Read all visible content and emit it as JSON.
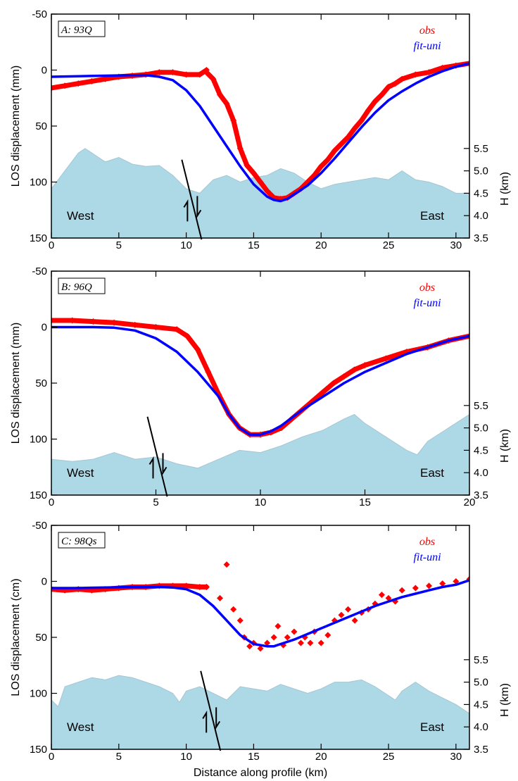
{
  "colors": {
    "obs": "#ff0000",
    "fit": "#0000ff",
    "topography": "#add8e6",
    "axis": "#000000"
  },
  "xlabel": "Distance along profile (km)",
  "chart_data": [
    {
      "type": "line",
      "panel_label": "A: 93Q",
      "ylabel": "LOS displacement (mm)",
      "y2label": "H (km)",
      "xlim": [
        0,
        31
      ],
      "xticks": [
        0,
        5,
        10,
        15,
        20,
        25,
        30
      ],
      "ylim": [
        150,
        -50
      ],
      "yticks": [
        -50,
        0,
        50,
        100,
        150
      ],
      "y2lim": [
        3.5,
        5.5
      ],
      "y2ticks": [
        "5.5",
        "5.0",
        "4.5",
        "4.0",
        "3.5"
      ],
      "legend": [
        "obs",
        "fit-uni"
      ],
      "legend_position": "top-right",
      "direction_labels": [
        "West",
        "East"
      ],
      "fault_x": 10.3,
      "obs_segments": [
        [
          [
            0,
            16
          ],
          [
            1,
            14
          ],
          [
            2,
            12
          ],
          [
            3,
            10
          ],
          [
            4,
            8
          ],
          [
            5,
            6
          ],
          [
            6,
            5
          ],
          [
            7,
            4
          ],
          [
            8,
            2
          ],
          [
            9,
            2
          ],
          [
            10,
            4
          ],
          [
            11,
            4
          ],
          [
            11.5,
            0
          ]
        ],
        [
          [
            11.5,
            2
          ],
          [
            12,
            8
          ],
          [
            12.5,
            22
          ],
          [
            13,
            30
          ],
          [
            13.5,
            45
          ],
          [
            14,
            70
          ],
          [
            14.5,
            85
          ],
          [
            15,
            92
          ],
          [
            15.5,
            100
          ],
          [
            16,
            108
          ],
          [
            16.5,
            114
          ],
          [
            17,
            115
          ],
          [
            17.5,
            114
          ],
          [
            18,
            110
          ],
          [
            18.5,
            106
          ],
          [
            19,
            100
          ],
          [
            19.5,
            94
          ],
          [
            20,
            86
          ],
          [
            20.5,
            80
          ],
          [
            21,
            72
          ],
          [
            21.5,
            66
          ],
          [
            22,
            60
          ],
          [
            22.5,
            52
          ],
          [
            23,
            45
          ],
          [
            23.5,
            36
          ],
          [
            24,
            28
          ],
          [
            24.5,
            22
          ],
          [
            25,
            15
          ],
          [
            25.5,
            12
          ],
          [
            26,
            8
          ],
          [
            27,
            4
          ],
          [
            28,
            2
          ],
          [
            29,
            -2
          ],
          [
            30,
            -4
          ],
          [
            31,
            -6
          ]
        ]
      ],
      "fit": [
        [
          0,
          6
        ],
        [
          2,
          5.5
        ],
        [
          4,
          5
        ],
        [
          6,
          4.5
        ],
        [
          7,
          4.5
        ],
        [
          8,
          6
        ],
        [
          9,
          9
        ],
        [
          10,
          18
        ],
        [
          11,
          32
        ],
        [
          12,
          50
        ],
        [
          13,
          68
        ],
        [
          14,
          86
        ],
        [
          15,
          102
        ],
        [
          16,
          113
        ],
        [
          16.5,
          116
        ],
        [
          17,
          117
        ],
        [
          17.5,
          115
        ],
        [
          18,
          111
        ],
        [
          19,
          103
        ],
        [
          20,
          92
        ],
        [
          21,
          79
        ],
        [
          22,
          65
        ],
        [
          23,
          51
        ],
        [
          24,
          38
        ],
        [
          25,
          27
        ],
        [
          26,
          19
        ],
        [
          27,
          12
        ],
        [
          28,
          6
        ],
        [
          29,
          1
        ],
        [
          30,
          -3
        ],
        [
          31,
          -6
        ]
      ],
      "topography_km": [
        [
          0,
          4.6
        ],
        [
          1,
          5.0
        ],
        [
          2,
          5.4
        ],
        [
          2.5,
          5.5
        ],
        [
          3,
          5.4
        ],
        [
          4,
          5.2
        ],
        [
          5,
          5.3
        ],
        [
          6,
          5.15
        ],
        [
          7,
          5.1
        ],
        [
          8,
          5.12
        ],
        [
          9,
          4.9
        ],
        [
          10,
          4.6
        ],
        [
          11,
          4.5
        ],
        [
          12,
          4.8
        ],
        [
          13,
          4.9
        ],
        [
          14,
          4.75
        ],
        [
          15,
          4.85
        ],
        [
          16,
          4.9
        ],
        [
          17,
          5.05
        ],
        [
          18,
          4.95
        ],
        [
          19,
          4.75
        ],
        [
          20,
          4.6
        ],
        [
          21,
          4.7
        ],
        [
          22,
          4.75
        ],
        [
          23,
          4.8
        ],
        [
          24,
          4.85
        ],
        [
          25,
          4.8
        ],
        [
          26,
          5.0
        ],
        [
          27,
          4.8
        ],
        [
          28,
          4.75
        ],
        [
          29,
          4.65
        ],
        [
          30,
          4.5
        ],
        [
          31,
          4.5
        ]
      ]
    },
    {
      "type": "line",
      "panel_label": "B: 96Q",
      "ylabel": "LOS displacement (mm)",
      "y2label": "H (km)",
      "xlim": [
        0,
        20
      ],
      "xticks": [
        0,
        5,
        10,
        15,
        20
      ],
      "ylim": [
        150,
        -50
      ],
      "yticks": [
        -50,
        0,
        50,
        100,
        150
      ],
      "y2lim": [
        3.5,
        5.5
      ],
      "y2ticks": [
        "5.5",
        "5.0",
        "4.5",
        "4.0",
        "3.5"
      ],
      "legend": [
        "obs",
        "fit-uni"
      ],
      "legend_position": "top-right",
      "direction_labels": [
        "West",
        "East"
      ],
      "fault_x": 5.0,
      "obs_segments": [
        [
          [
            0,
            -6
          ],
          [
            1,
            -6
          ],
          [
            2,
            -5
          ],
          [
            3,
            -4
          ],
          [
            4,
            -2
          ],
          [
            5,
            0
          ],
          [
            6,
            2
          ],
          [
            6.5,
            8
          ],
          [
            7,
            20
          ],
          [
            7.5,
            40
          ],
          [
            8,
            60
          ],
          [
            8.5,
            78
          ],
          [
            9,
            90
          ],
          [
            9.5,
            96
          ],
          [
            10,
            96
          ],
          [
            10.5,
            94
          ],
          [
            11,
            90
          ],
          [
            11.5,
            82
          ],
          [
            12,
            74
          ],
          [
            12.5,
            66
          ],
          [
            13,
            58
          ],
          [
            13.5,
            50
          ],
          [
            14,
            44
          ],
          [
            14.5,
            38
          ],
          [
            15,
            34
          ],
          [
            16,
            28
          ],
          [
            17,
            22
          ],
          [
            18,
            18
          ],
          [
            19,
            12
          ],
          [
            20,
            8
          ]
        ]
      ],
      "fit": [
        [
          0,
          0
        ],
        [
          1,
          0
        ],
        [
          2,
          0
        ],
        [
          3,
          0.5
        ],
        [
          4,
          3
        ],
        [
          5,
          10
        ],
        [
          6,
          22
        ],
        [
          7,
          40
        ],
        [
          8,
          62
        ],
        [
          8.5,
          78
        ],
        [
          9,
          90
        ],
        [
          9.5,
          96
        ],
        [
          10,
          96
        ],
        [
          10.5,
          93
        ],
        [
          11,
          88
        ],
        [
          12,
          74
        ],
        [
          13,
          62
        ],
        [
          14,
          50
        ],
        [
          15,
          40
        ],
        [
          16,
          32
        ],
        [
          17,
          24
        ],
        [
          18,
          18
        ],
        [
          19,
          12
        ],
        [
          20,
          8
        ]
      ],
      "topography_km": [
        [
          0,
          4.3
        ],
        [
          1,
          4.25
        ],
        [
          2,
          4.3
        ],
        [
          3,
          4.45
        ],
        [
          4,
          4.3
        ],
        [
          5,
          4.35
        ],
        [
          6,
          4.2
        ],
        [
          7,
          4.1
        ],
        [
          8,
          4.3
        ],
        [
          9,
          4.5
        ],
        [
          10,
          4.45
        ],
        [
          11,
          4.6
        ],
        [
          12,
          4.8
        ],
        [
          13,
          4.95
        ],
        [
          14,
          5.2
        ],
        [
          14.5,
          5.3
        ],
        [
          15,
          5.1
        ],
        [
          16,
          4.8
        ],
        [
          17,
          4.5
        ],
        [
          17.5,
          4.4
        ],
        [
          18,
          4.7
        ],
        [
          19,
          5.0
        ],
        [
          20,
          5.3
        ]
      ]
    },
    {
      "type": "line",
      "panel_label": "C: 98Qs",
      "ylabel": "LOS displacement (cm)",
      "y2label": "H (km)",
      "xlim": [
        0,
        31
      ],
      "xticks": [
        0,
        5,
        10,
        15,
        20,
        25,
        30
      ],
      "ylim": [
        150,
        -50
      ],
      "yticks": [
        -50,
        0,
        50,
        100,
        150
      ],
      "y2lim": [
        3.5,
        5.5
      ],
      "y2ticks": [
        "5.5",
        "5.0",
        "4.5",
        "4.0",
        "3.5"
      ],
      "legend": [
        "obs",
        "fit-uni"
      ],
      "legend_position": "top-right",
      "direction_labels": [
        "West",
        "East"
      ],
      "fault_x": 11.7,
      "obs_segments": [
        [
          [
            0,
            7
          ],
          [
            1,
            8
          ],
          [
            2,
            7
          ],
          [
            3,
            8
          ],
          [
            4,
            7
          ],
          [
            5,
            6
          ],
          [
            6,
            5
          ],
          [
            7,
            5
          ],
          [
            8,
            4
          ],
          [
            9,
            4
          ],
          [
            10,
            4
          ],
          [
            11,
            5
          ],
          [
            11.5,
            5
          ]
        ]
      ],
      "obs_points": [
        [
          11.5,
          5
        ],
        [
          12.5,
          15
        ],
        [
          13,
          -15
        ],
        [
          13.5,
          25
        ],
        [
          14,
          35
        ],
        [
          14.3,
          50
        ],
        [
          14.7,
          58
        ],
        [
          15,
          55
        ],
        [
          15.5,
          60
        ],
        [
          16,
          55
        ],
        [
          16.5,
          50
        ],
        [
          16.8,
          40
        ],
        [
          17.2,
          57
        ],
        [
          17.5,
          50
        ],
        [
          18,
          45
        ],
        [
          18.5,
          55
        ],
        [
          18.8,
          50
        ],
        [
          19.2,
          55
        ],
        [
          19.5,
          45
        ],
        [
          20,
          55
        ],
        [
          20.5,
          48
        ],
        [
          21,
          35
        ],
        [
          21.5,
          30
        ],
        [
          22,
          25
        ],
        [
          22.5,
          35
        ],
        [
          23,
          28
        ],
        [
          23.5,
          25
        ],
        [
          24,
          20
        ],
        [
          24.5,
          12
        ],
        [
          25,
          15
        ],
        [
          25.5,
          18
        ],
        [
          26,
          8
        ],
        [
          27,
          6
        ],
        [
          28,
          4
        ],
        [
          29,
          2
        ],
        [
          30,
          0
        ],
        [
          31,
          -2
        ]
      ],
      "fit": [
        [
          0,
          6
        ],
        [
          2,
          6
        ],
        [
          4,
          5.5
        ],
        [
          6,
          5
        ],
        [
          8,
          5
        ],
        [
          9,
          5.5
        ],
        [
          10,
          7
        ],
        [
          11,
          12
        ],
        [
          12,
          22
        ],
        [
          13,
          35
        ],
        [
          14,
          48
        ],
        [
          15,
          56
        ],
        [
          16,
          58
        ],
        [
          16.5,
          58
        ],
        [
          17,
          56
        ],
        [
          18,
          52
        ],
        [
          19,
          47
        ],
        [
          20,
          42
        ],
        [
          21,
          37
        ],
        [
          22,
          32
        ],
        [
          23,
          27
        ],
        [
          24,
          22
        ],
        [
          25,
          18
        ],
        [
          26,
          14
        ],
        [
          27,
          11
        ],
        [
          28,
          8
        ],
        [
          29,
          5
        ],
        [
          30,
          3
        ],
        [
          31,
          -1
        ]
      ],
      "topography_km": [
        [
          0,
          4.6
        ],
        [
          0.5,
          4.45
        ],
        [
          1,
          4.9
        ],
        [
          2,
          5.0
        ],
        [
          3,
          5.1
        ],
        [
          4,
          5.05
        ],
        [
          5,
          5.15
        ],
        [
          6,
          5.1
        ],
        [
          7,
          5.0
        ],
        [
          8,
          4.9
        ],
        [
          9,
          4.75
        ],
        [
          9.5,
          4.55
        ],
        [
          10,
          4.8
        ],
        [
          11,
          4.9
        ],
        [
          12,
          4.75
        ],
        [
          13,
          4.6
        ],
        [
          14,
          4.9
        ],
        [
          15,
          4.85
        ],
        [
          16,
          4.8
        ],
        [
          17,
          4.95
        ],
        [
          18,
          4.85
        ],
        [
          19,
          4.75
        ],
        [
          20,
          4.85
        ],
        [
          21,
          5.0
        ],
        [
          22,
          5.0
        ],
        [
          23,
          5.05
        ],
        [
          24,
          4.9
        ],
        [
          25,
          4.7
        ],
        [
          25.5,
          4.6
        ],
        [
          26,
          4.8
        ],
        [
          27,
          5.0
        ],
        [
          28,
          4.8
        ],
        [
          29,
          4.65
        ],
        [
          30,
          4.5
        ],
        [
          31,
          4.3
        ]
      ]
    }
  ]
}
